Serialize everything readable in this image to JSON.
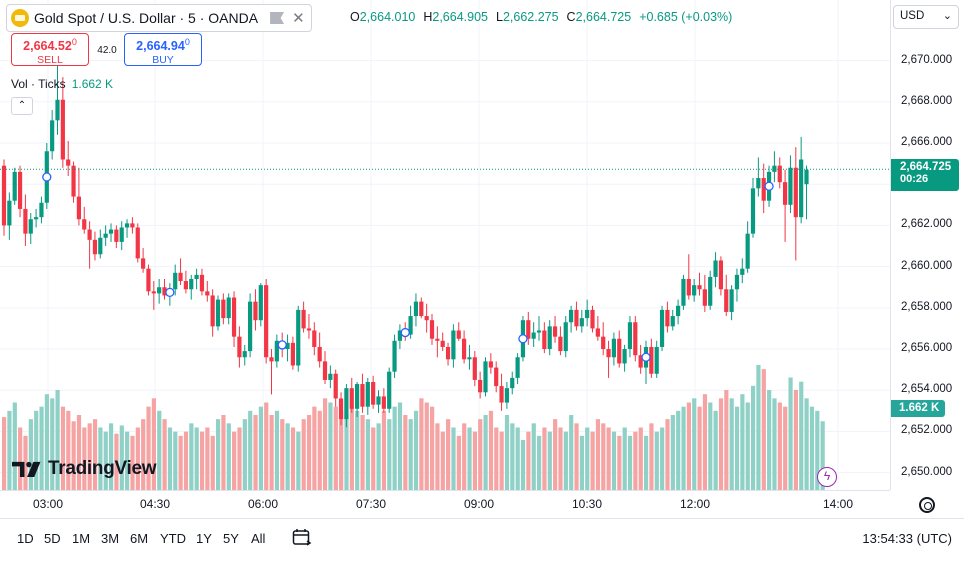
{
  "header": {
    "symbol_title": "Gold Spot / U.S. Dollar · 5 · OANDA",
    "ohlc": {
      "open_label": "O",
      "open": "2,664.010",
      "high_label": "H",
      "high": "2,664.905",
      "low_label": "L",
      "low": "2,662.275",
      "close_label": "C",
      "close": "2,664.725",
      "change": "+0.685 (+0.03%)"
    },
    "icons": {
      "symbol": "gold-coin-icon",
      "flag": "flag-icon",
      "close": "close-icon"
    }
  },
  "trade": {
    "sell_price": "2,664.52",
    "sell_price_sup": "0",
    "sell_label": "SELL",
    "spread": "42.0",
    "buy_price": "2,664.94",
    "buy_price_sup": "0",
    "buy_label": "BUY"
  },
  "volume_legend": {
    "label": "Vol · Ticks",
    "value": "1.662 K"
  },
  "currency": {
    "selected": "USD"
  },
  "price_axis": {
    "ticks": [
      "2,670.000",
      "2,668.000",
      "2,666.000",
      "2,664.000",
      "2,662.000",
      "2,660.000",
      "2,658.000",
      "2,656.000",
      "2,654.000",
      "2,652.000",
      "2,650.000"
    ],
    "last_price": "2,664.725",
    "countdown": "00:26",
    "volume_label": "1.662 K"
  },
  "time_axis": {
    "ticks": [
      "03:00",
      "04:30",
      "06:00",
      "07:30",
      "09:00",
      "10:30",
      "12:00",
      "14:00"
    ]
  },
  "bottom_bar": {
    "ranges": [
      "1D",
      "5D",
      "1M",
      "3M",
      "6M",
      "YTD",
      "1Y",
      "5Y",
      "All"
    ],
    "clock": "13:54:33 (UTC)"
  },
  "branding": {
    "logo_text": "TradingView"
  },
  "colors": {
    "up": "#089981",
    "down": "#f23645",
    "vol_up": "#8fd1c6",
    "vol_down": "#f5a3a3",
    "grid": "#f0f3fa"
  },
  "chart_data": {
    "type": "candlestick",
    "symbol": "XAUUSD",
    "interval": "5",
    "y_range": [
      2649.4,
      2671.0
    ],
    "x_axis_labels": [
      "03:00",
      "04:30",
      "06:00",
      "07:30",
      "09:00",
      "10:30",
      "12:00",
      "14:00"
    ],
    "candles": [
      {
        "o": 2664.9,
        "h": 2665.2,
        "l": 2661.5,
        "c": 2662.0
      },
      {
        "o": 2662.0,
        "h": 2663.6,
        "l": 2661.3,
        "c": 2663.2
      },
      {
        "o": 2663.2,
        "h": 2664.8,
        "l": 2663.0,
        "c": 2664.6
      },
      {
        "o": 2664.6,
        "h": 2664.9,
        "l": 2662.4,
        "c": 2662.8
      },
      {
        "o": 2662.8,
        "h": 2663.5,
        "l": 2661.0,
        "c": 2661.6
      },
      {
        "o": 2661.6,
        "h": 2662.6,
        "l": 2661.1,
        "c": 2662.3
      },
      {
        "o": 2662.3,
        "h": 2662.8,
        "l": 2661.9,
        "c": 2662.4
      },
      {
        "o": 2662.4,
        "h": 2663.4,
        "l": 2662.1,
        "c": 2663.1
      },
      {
        "o": 2663.1,
        "h": 2666.0,
        "l": 2662.8,
        "c": 2665.6
      },
      {
        "o": 2665.6,
        "h": 2667.6,
        "l": 2665.2,
        "c": 2667.1
      },
      {
        "o": 2667.1,
        "h": 2671.0,
        "l": 2666.4,
        "c": 2668.1
      },
      {
        "o": 2668.1,
        "h": 2669.2,
        "l": 2664.8,
        "c": 2665.2
      },
      {
        "o": 2665.2,
        "h": 2666.1,
        "l": 2664.4,
        "c": 2664.9
      },
      {
        "o": 2664.9,
        "h": 2665.1,
        "l": 2663.1,
        "c": 2663.4
      },
      {
        "o": 2663.4,
        "h": 2664.8,
        "l": 2662.0,
        "c": 2662.3
      },
      {
        "o": 2662.3,
        "h": 2662.9,
        "l": 2661.6,
        "c": 2661.8
      },
      {
        "o": 2661.8,
        "h": 2662.2,
        "l": 2659.9,
        "c": 2661.3
      },
      {
        "o": 2661.3,
        "h": 2661.7,
        "l": 2660.3,
        "c": 2660.6
      },
      {
        "o": 2660.6,
        "h": 2661.8,
        "l": 2660.4,
        "c": 2661.4
      },
      {
        "o": 2661.4,
        "h": 2662.0,
        "l": 2661.0,
        "c": 2661.6
      },
      {
        "o": 2661.6,
        "h": 2662.1,
        "l": 2661.2,
        "c": 2661.8
      },
      {
        "o": 2661.8,
        "h": 2662.0,
        "l": 2660.9,
        "c": 2661.2
      },
      {
        "o": 2661.2,
        "h": 2662.2,
        "l": 2660.8,
        "c": 2661.9
      },
      {
        "o": 2661.9,
        "h": 2662.3,
        "l": 2661.4,
        "c": 2662.1
      },
      {
        "o": 2662.1,
        "h": 2662.4,
        "l": 2661.6,
        "c": 2661.9
      },
      {
        "o": 2661.9,
        "h": 2662.1,
        "l": 2660.2,
        "c": 2660.4
      },
      {
        "o": 2660.4,
        "h": 2660.9,
        "l": 2659.7,
        "c": 2659.9
      },
      {
        "o": 2659.9,
        "h": 2660.1,
        "l": 2658.6,
        "c": 2658.8
      },
      {
        "o": 2658.8,
        "h": 2659.3,
        "l": 2657.9,
        "c": 2658.7
      },
      {
        "o": 2658.7,
        "h": 2659.4,
        "l": 2658.2,
        "c": 2659.0
      },
      {
        "o": 2659.0,
        "h": 2659.4,
        "l": 2658.4,
        "c": 2658.6
      },
      {
        "o": 2658.6,
        "h": 2659.2,
        "l": 2658.1,
        "c": 2658.9
      },
      {
        "o": 2658.9,
        "h": 2660.1,
        "l": 2658.6,
        "c": 2659.7
      },
      {
        "o": 2659.7,
        "h": 2660.4,
        "l": 2659.1,
        "c": 2659.3
      },
      {
        "o": 2659.3,
        "h": 2659.8,
        "l": 2658.7,
        "c": 2658.9
      },
      {
        "o": 2658.9,
        "h": 2659.6,
        "l": 2658.4,
        "c": 2659.4
      },
      {
        "o": 2659.4,
        "h": 2659.9,
        "l": 2658.9,
        "c": 2659.6
      },
      {
        "o": 2659.6,
        "h": 2659.9,
        "l": 2658.6,
        "c": 2658.8
      },
      {
        "o": 2658.8,
        "h": 2659.3,
        "l": 2658.3,
        "c": 2658.6
      },
      {
        "o": 2658.6,
        "h": 2658.9,
        "l": 2656.6,
        "c": 2657.1
      },
      {
        "o": 2657.1,
        "h": 2658.6,
        "l": 2656.9,
        "c": 2658.4
      },
      {
        "o": 2658.4,
        "h": 2658.7,
        "l": 2657.2,
        "c": 2657.5
      },
      {
        "o": 2657.5,
        "h": 2658.7,
        "l": 2657.2,
        "c": 2658.5
      },
      {
        "o": 2658.5,
        "h": 2658.8,
        "l": 2656.1,
        "c": 2656.6
      },
      {
        "o": 2656.6,
        "h": 2657.1,
        "l": 2655.1,
        "c": 2655.6
      },
      {
        "o": 2655.6,
        "h": 2656.2,
        "l": 2655.2,
        "c": 2655.9
      },
      {
        "o": 2655.9,
        "h": 2658.7,
        "l": 2655.6,
        "c": 2658.3
      },
      {
        "o": 2658.3,
        "h": 2658.9,
        "l": 2656.9,
        "c": 2657.4
      },
      {
        "o": 2657.4,
        "h": 2659.2,
        "l": 2657.1,
        "c": 2659.1
      },
      {
        "o": 2659.1,
        "h": 2659.4,
        "l": 2655.3,
        "c": 2655.6
      },
      {
        "o": 2655.6,
        "h": 2656.0,
        "l": 2653.8,
        "c": 2655.4
      },
      {
        "o": 2655.4,
        "h": 2656.7,
        "l": 2655.1,
        "c": 2656.4
      },
      {
        "o": 2656.4,
        "h": 2656.8,
        "l": 2655.6,
        "c": 2656.0
      },
      {
        "o": 2656.0,
        "h": 2656.7,
        "l": 2655.4,
        "c": 2656.3
      },
      {
        "o": 2656.3,
        "h": 2656.6,
        "l": 2655.0,
        "c": 2655.2
      },
      {
        "o": 2655.2,
        "h": 2658.1,
        "l": 2654.9,
        "c": 2657.9
      },
      {
        "o": 2657.9,
        "h": 2658.3,
        "l": 2656.8,
        "c": 2657.0
      },
      {
        "o": 2657.0,
        "h": 2657.7,
        "l": 2656.5,
        "c": 2656.9
      },
      {
        "o": 2656.9,
        "h": 2657.3,
        "l": 2655.7,
        "c": 2656.1
      },
      {
        "o": 2656.1,
        "h": 2656.8,
        "l": 2655.1,
        "c": 2655.4
      },
      {
        "o": 2655.4,
        "h": 2655.9,
        "l": 2654.3,
        "c": 2654.5
      },
      {
        "o": 2654.5,
        "h": 2655.2,
        "l": 2654.1,
        "c": 2654.8
      },
      {
        "o": 2654.8,
        "h": 2655.0,
        "l": 2653.2,
        "c": 2653.6
      },
      {
        "o": 2653.6,
        "h": 2653.9,
        "l": 2652.3,
        "c": 2652.6
      },
      {
        "o": 2652.6,
        "h": 2654.3,
        "l": 2652.2,
        "c": 2654.1
      },
      {
        "o": 2654.1,
        "h": 2654.6,
        "l": 2652.9,
        "c": 2653.1
      },
      {
        "o": 2653.1,
        "h": 2654.4,
        "l": 2652.7,
        "c": 2654.3
      },
      {
        "o": 2654.3,
        "h": 2654.8,
        "l": 2652.9,
        "c": 2653.2
      },
      {
        "o": 2653.2,
        "h": 2654.6,
        "l": 2652.8,
        "c": 2654.4
      },
      {
        "o": 2654.4,
        "h": 2654.7,
        "l": 2653.1,
        "c": 2653.3
      },
      {
        "o": 2653.3,
        "h": 2654.0,
        "l": 2652.9,
        "c": 2653.7
      },
      {
        "o": 2653.7,
        "h": 2654.1,
        "l": 2652.9,
        "c": 2653.1
      },
      {
        "o": 2653.1,
        "h": 2655.1,
        "l": 2652.9,
        "c": 2654.9
      },
      {
        "o": 2654.9,
        "h": 2656.7,
        "l": 2654.6,
        "c": 2656.4
      },
      {
        "o": 2656.4,
        "h": 2657.2,
        "l": 2656.0,
        "c": 2656.9
      },
      {
        "o": 2656.9,
        "h": 2657.3,
        "l": 2656.4,
        "c": 2656.7
      },
      {
        "o": 2656.7,
        "h": 2658.1,
        "l": 2656.5,
        "c": 2657.6
      },
      {
        "o": 2657.6,
        "h": 2658.7,
        "l": 2657.1,
        "c": 2658.3
      },
      {
        "o": 2658.3,
        "h": 2658.5,
        "l": 2657.5,
        "c": 2657.6
      },
      {
        "o": 2657.6,
        "h": 2658.2,
        "l": 2656.8,
        "c": 2657.4
      },
      {
        "o": 2657.4,
        "h": 2657.7,
        "l": 2656.2,
        "c": 2656.5
      },
      {
        "o": 2656.5,
        "h": 2657.1,
        "l": 2655.6,
        "c": 2656.4
      },
      {
        "o": 2656.4,
        "h": 2656.8,
        "l": 2655.9,
        "c": 2656.1
      },
      {
        "o": 2656.1,
        "h": 2656.3,
        "l": 2655.2,
        "c": 2655.5
      },
      {
        "o": 2655.5,
        "h": 2657.2,
        "l": 2655.1,
        "c": 2656.9
      },
      {
        "o": 2656.9,
        "h": 2657.3,
        "l": 2656.4,
        "c": 2656.5
      },
      {
        "o": 2656.5,
        "h": 2656.9,
        "l": 2655.3,
        "c": 2655.5
      },
      {
        "o": 2655.5,
        "h": 2656.2,
        "l": 2655.0,
        "c": 2655.6
      },
      {
        "o": 2655.6,
        "h": 2655.9,
        "l": 2654.2,
        "c": 2654.5
      },
      {
        "o": 2654.5,
        "h": 2654.9,
        "l": 2653.6,
        "c": 2653.9
      },
      {
        "o": 2653.9,
        "h": 2655.6,
        "l": 2653.7,
        "c": 2655.4
      },
      {
        "o": 2655.4,
        "h": 2655.8,
        "l": 2654.8,
        "c": 2655.1
      },
      {
        "o": 2655.1,
        "h": 2655.4,
        "l": 2653.9,
        "c": 2654.2
      },
      {
        "o": 2654.2,
        "h": 2654.8,
        "l": 2653.0,
        "c": 2653.4
      },
      {
        "o": 2653.4,
        "h": 2654.4,
        "l": 2653.1,
        "c": 2654.1
      },
      {
        "o": 2654.1,
        "h": 2654.9,
        "l": 2653.8,
        "c": 2654.6
      },
      {
        "o": 2654.6,
        "h": 2655.8,
        "l": 2654.3,
        "c": 2655.6
      },
      {
        "o": 2655.6,
        "h": 2657.6,
        "l": 2655.4,
        "c": 2657.4
      },
      {
        "o": 2657.4,
        "h": 2657.8,
        "l": 2656.2,
        "c": 2656.5
      },
      {
        "o": 2656.5,
        "h": 2657.3,
        "l": 2656.1,
        "c": 2656.8
      },
      {
        "o": 2656.8,
        "h": 2657.6,
        "l": 2656.4,
        "c": 2656.9
      },
      {
        "o": 2656.9,
        "h": 2657.3,
        "l": 2655.8,
        "c": 2656.0
      },
      {
        "o": 2656.0,
        "h": 2657.4,
        "l": 2655.7,
        "c": 2657.1
      },
      {
        "o": 2657.1,
        "h": 2657.6,
        "l": 2656.3,
        "c": 2656.6
      },
      {
        "o": 2656.6,
        "h": 2657.1,
        "l": 2655.7,
        "c": 2655.9
      },
      {
        "o": 2655.9,
        "h": 2657.6,
        "l": 2655.6,
        "c": 2657.3
      },
      {
        "o": 2657.3,
        "h": 2658.1,
        "l": 2656.8,
        "c": 2657.9
      },
      {
        "o": 2657.9,
        "h": 2658.3,
        "l": 2656.9,
        "c": 2657.1
      },
      {
        "o": 2657.1,
        "h": 2657.9,
        "l": 2656.8,
        "c": 2657.5
      },
      {
        "o": 2657.5,
        "h": 2658.4,
        "l": 2657.1,
        "c": 2657.9
      },
      {
        "o": 2657.9,
        "h": 2658.1,
        "l": 2656.8,
        "c": 2657.0
      },
      {
        "o": 2657.0,
        "h": 2657.6,
        "l": 2656.4,
        "c": 2656.6
      },
      {
        "o": 2656.6,
        "h": 2657.3,
        "l": 2655.7,
        "c": 2656.0
      },
      {
        "o": 2656.0,
        "h": 2656.4,
        "l": 2654.6,
        "c": 2655.6
      },
      {
        "o": 2655.6,
        "h": 2656.8,
        "l": 2655.2,
        "c": 2656.5
      },
      {
        "o": 2656.5,
        "h": 2656.9,
        "l": 2655.1,
        "c": 2655.3
      },
      {
        "o": 2655.3,
        "h": 2656.2,
        "l": 2654.9,
        "c": 2656.0
      },
      {
        "o": 2656.0,
        "h": 2657.6,
        "l": 2655.6,
        "c": 2657.3
      },
      {
        "o": 2657.3,
        "h": 2657.6,
        "l": 2655.4,
        "c": 2655.7
      },
      {
        "o": 2655.7,
        "h": 2656.2,
        "l": 2654.8,
        "c": 2655.1
      },
      {
        "o": 2655.1,
        "h": 2656.4,
        "l": 2654.3,
        "c": 2656.1
      },
      {
        "o": 2656.1,
        "h": 2656.5,
        "l": 2654.6,
        "c": 2654.8
      },
      {
        "o": 2654.8,
        "h": 2656.4,
        "l": 2654.6,
        "c": 2656.1
      },
      {
        "o": 2656.1,
        "h": 2658.1,
        "l": 2655.9,
        "c": 2657.9
      },
      {
        "o": 2657.9,
        "h": 2658.3,
        "l": 2656.8,
        "c": 2657.1
      },
      {
        "o": 2657.1,
        "h": 2657.9,
        "l": 2656.9,
        "c": 2657.6
      },
      {
        "o": 2657.6,
        "h": 2658.4,
        "l": 2657.2,
        "c": 2658.1
      },
      {
        "o": 2658.1,
        "h": 2659.6,
        "l": 2657.9,
        "c": 2659.4
      },
      {
        "o": 2659.4,
        "h": 2660.6,
        "l": 2658.4,
        "c": 2658.6
      },
      {
        "o": 2658.6,
        "h": 2659.4,
        "l": 2658.3,
        "c": 2659.1
      },
      {
        "o": 2659.1,
        "h": 2659.7,
        "l": 2658.6,
        "c": 2658.9
      },
      {
        "o": 2658.9,
        "h": 2659.6,
        "l": 2657.8,
        "c": 2658.1
      },
      {
        "o": 2658.1,
        "h": 2659.8,
        "l": 2657.9,
        "c": 2659.5
      },
      {
        "o": 2659.5,
        "h": 2660.7,
        "l": 2659.0,
        "c": 2660.3
      },
      {
        "o": 2660.3,
        "h": 2660.5,
        "l": 2658.6,
        "c": 2658.9
      },
      {
        "o": 2658.9,
        "h": 2659.6,
        "l": 2657.6,
        "c": 2657.8
      },
      {
        "o": 2657.8,
        "h": 2659.1,
        "l": 2657.4,
        "c": 2658.9
      },
      {
        "o": 2658.9,
        "h": 2659.9,
        "l": 2658.3,
        "c": 2659.6
      },
      {
        "o": 2659.6,
        "h": 2660.4,
        "l": 2659.2,
        "c": 2659.9
      },
      {
        "o": 2659.9,
        "h": 2662.2,
        "l": 2659.7,
        "c": 2661.6
      },
      {
        "o": 2661.6,
        "h": 2664.3,
        "l": 2661.4,
        "c": 2663.8
      },
      {
        "o": 2663.8,
        "h": 2665.3,
        "l": 2663.4,
        "c": 2664.3
      },
      {
        "o": 2664.3,
        "h": 2665.0,
        "l": 2662.6,
        "c": 2663.2
      },
      {
        "o": 2663.2,
        "h": 2664.9,
        "l": 2662.9,
        "c": 2664.6
      },
      {
        "o": 2664.6,
        "h": 2665.6,
        "l": 2664.1,
        "c": 2664.9
      },
      {
        "o": 2664.9,
        "h": 2665.3,
        "l": 2663.8,
        "c": 2664.1
      },
      {
        "o": 2664.1,
        "h": 2664.7,
        "l": 2661.2,
        "c": 2663.0
      },
      {
        "o": 2663.0,
        "h": 2665.4,
        "l": 2662.6,
        "c": 2664.8
      },
      {
        "o": 2664.8,
        "h": 2665.8,
        "l": 2660.3,
        "c": 2662.4
      },
      {
        "o": 2662.4,
        "h": 2666.3,
        "l": 2662.1,
        "c": 2665.2
      },
      {
        "o": 2664.0,
        "h": 2664.9,
        "l": 2662.3,
        "c": 2664.7
      }
    ],
    "volume": [
      35,
      38,
      42,
      30,
      26,
      34,
      38,
      40,
      46,
      44,
      48,
      40,
      38,
      33,
      36,
      30,
      32,
      34,
      30,
      28,
      32,
      27,
      31,
      28,
      26,
      30,
      34,
      40,
      44,
      38,
      34,
      30,
      28,
      26,
      28,
      32,
      30,
      28,
      30,
      26,
      34,
      36,
      32,
      28,
      30,
      34,
      38,
      36,
      40,
      42,
      36,
      38,
      34,
      32,
      30,
      28,
      34,
      36,
      40,
      38,
      44,
      42,
      40,
      38,
      36,
      40,
      38,
      36,
      34,
      30,
      32,
      38,
      34,
      40,
      42,
      36,
      34,
      38,
      44,
      42,
      40,
      32,
      28,
      34,
      30,
      26,
      32,
      30,
      28,
      34,
      36,
      38,
      30,
      28,
      36,
      32,
      30,
      24,
      28,
      32,
      26,
      30,
      28,
      34,
      30,
      28,
      36,
      32,
      26,
      30,
      28,
      34,
      32,
      30,
      28,
      26,
      30,
      26,
      28,
      30,
      26,
      32,
      28,
      30,
      34,
      36,
      38,
      40,
      42,
      44,
      40,
      46,
      42,
      38,
      44,
      48,
      44,
      40,
      46,
      42,
      50,
      60,
      58,
      48,
      44,
      42,
      40,
      54,
      48,
      52,
      44,
      40,
      38,
      33
    ]
  }
}
